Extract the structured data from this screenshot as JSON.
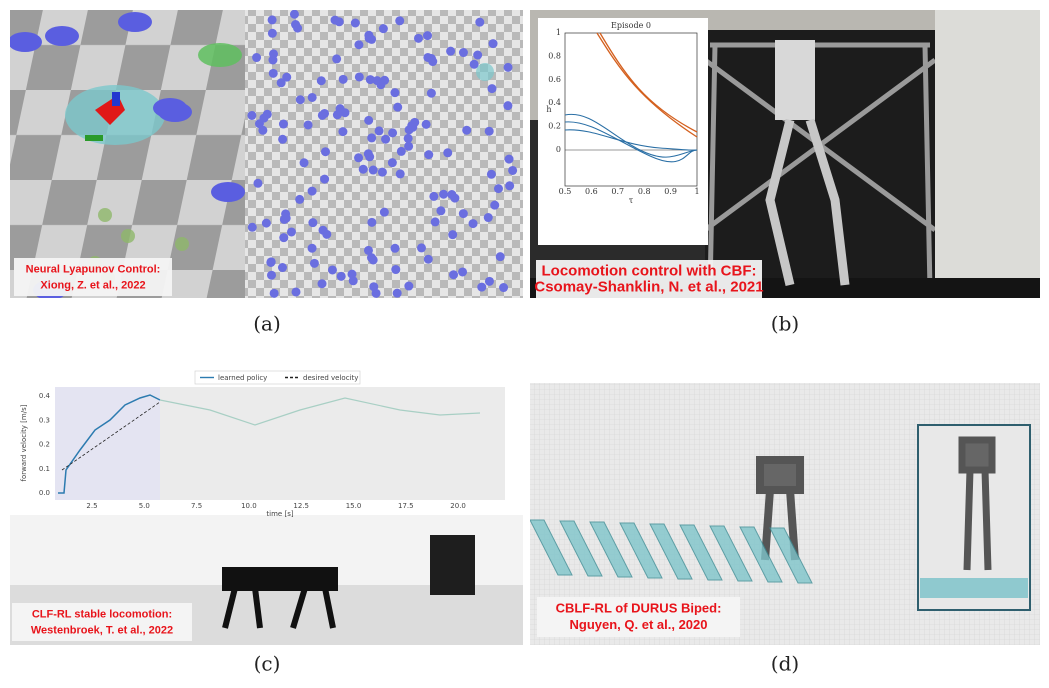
{
  "panels": [
    {
      "label": "(a)",
      "caption": [
        "Neural Lyapunov Control:",
        "Xiong, Z. et al., 2022"
      ]
    },
    {
      "label": "(b)",
      "caption": [
        "Locomotion control with CBF:",
        "Csomay-Shanklin, N. et al., 2021"
      ],
      "inset": {
        "title": "Episode 0",
        "y_label": "h",
        "x_label": "τ",
        "yticks": [
          "0",
          "0.2",
          "0.4",
          "0.6",
          "0.8",
          "1"
        ],
        "xticks": [
          "0.5",
          "0.6",
          "0.7",
          "0.8",
          "0.9",
          "1"
        ]
      }
    },
    {
      "label": "(c)",
      "caption": [
        "CLF-RL stable locomotion:",
        "Westenbroek, T. et al., 2022"
      ],
      "plot": {
        "legend": [
          "learned policy",
          "desired velocity"
        ],
        "y_label": "forward velocity [m/s]",
        "x_label": "time [s]",
        "yticks": [
          "0.0",
          "0.1",
          "0.2",
          "0.3",
          "0.4"
        ],
        "xticks": [
          "2.5",
          "5.0",
          "7.5",
          "10.0",
          "12.5",
          "15.0",
          "17.5",
          "20.0"
        ]
      }
    },
    {
      "label": "(d)",
      "caption": [
        "CBLF-RL of DURUS Biped:",
        "Nguyen, Q. et al., 2020"
      ]
    }
  ]
}
